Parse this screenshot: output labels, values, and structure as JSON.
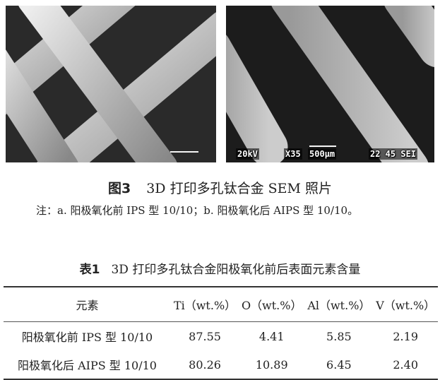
{
  "figure": {
    "image_a": {
      "info": ""
    },
    "image_b": {
      "info_voltage": "20kV",
      "info_mag": "X35",
      "info_scale": "500μm",
      "info_id": "22 45 SEI"
    },
    "caption_label": "图3",
    "caption_text": "3D 打印多孔钛合金 SEM 照片",
    "note": "注：a. 阳极氧化前 IPS 型 10/10；b. 阳极氧化后 AIPS 型 10/10。"
  },
  "table": {
    "caption_label": "表1",
    "caption_text": "3D 打印多孔钛合金阳极氧化前后表面元素含量",
    "headers": [
      "元素",
      "Ti（wt.%）",
      "O（wt.%）",
      "Al（wt.%）",
      "V（wt.%）"
    ],
    "rows": [
      [
        "阳极氧化前 IPS 型 10/10",
        "87.55",
        "4.41",
        "5.85",
        "2.19"
      ],
      [
        "阳极氧化后 AIPS 型 10/10",
        "80.26",
        "10.89",
        "6.45",
        "2.40"
      ]
    ]
  }
}
